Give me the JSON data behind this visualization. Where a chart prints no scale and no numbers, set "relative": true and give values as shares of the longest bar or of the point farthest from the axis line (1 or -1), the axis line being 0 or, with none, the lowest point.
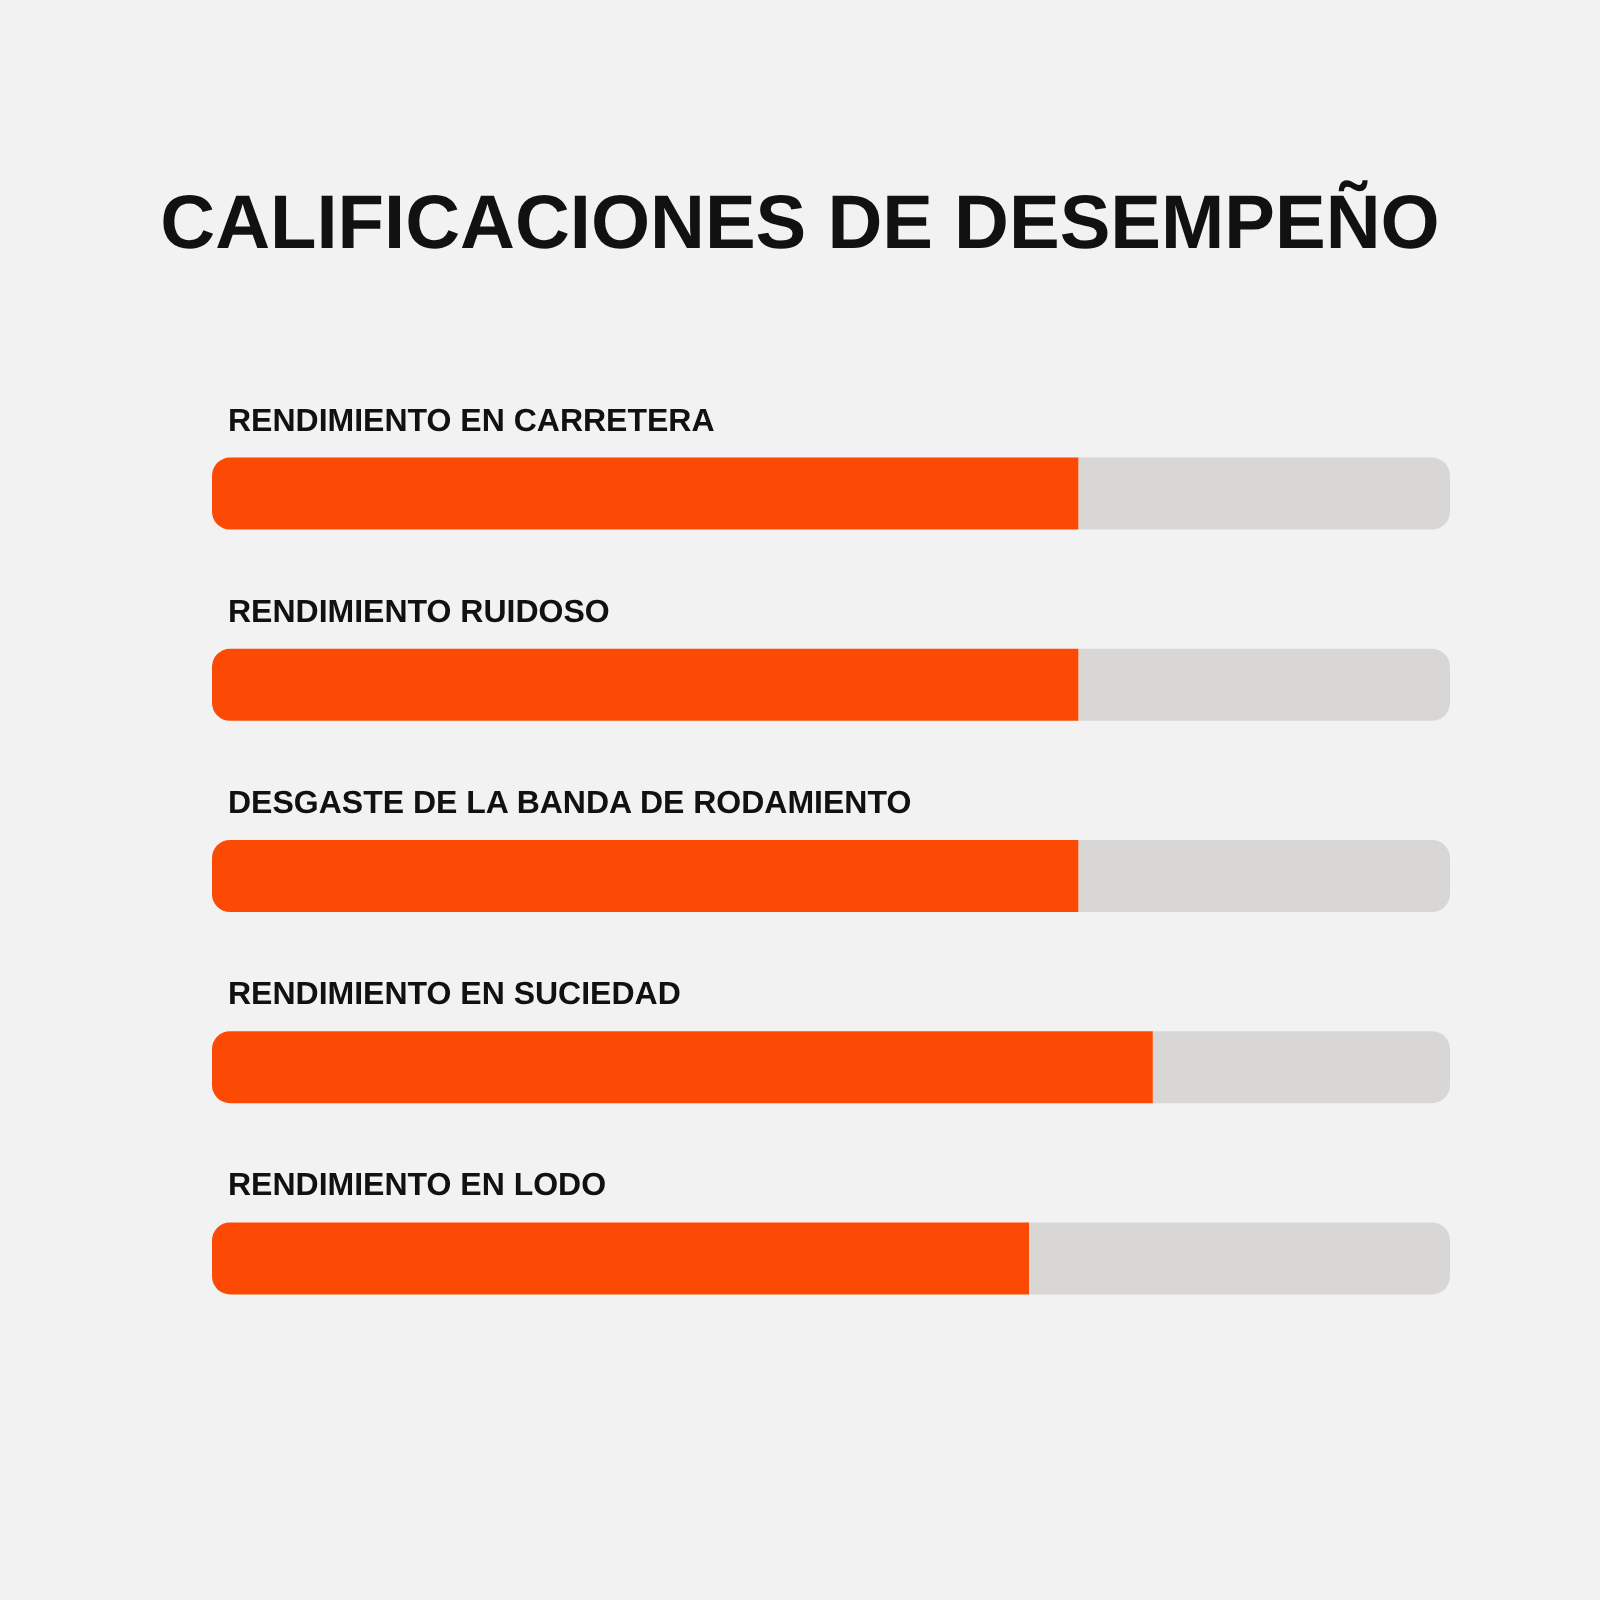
{
  "chart_data": {
    "type": "bar",
    "title": "CALIFICACIONES DE DESEMPEÑO",
    "orientation": "horizontal",
    "stacked": true,
    "relative": true,
    "categories": [
      "RENDIMIENTO EN CARRETERA",
      "RENDIMIENTO RUIDOSO",
      "DESGASTE DE LA BANDA DE RODAMIENTO",
      "RENDIMIENTO EN SUCIEDAD",
      "RENDIMIENTO EN LODO"
    ],
    "series": [
      {
        "color": "#fc4a05",
        "values": [
          0.7,
          0.7,
          0.7,
          0.76,
          0.66
        ]
      },
      {
        "color": "#d9d6d6",
        "values": [
          0.3,
          0.3,
          0.3,
          0.24,
          0.34
        ]
      }
    ]
  }
}
